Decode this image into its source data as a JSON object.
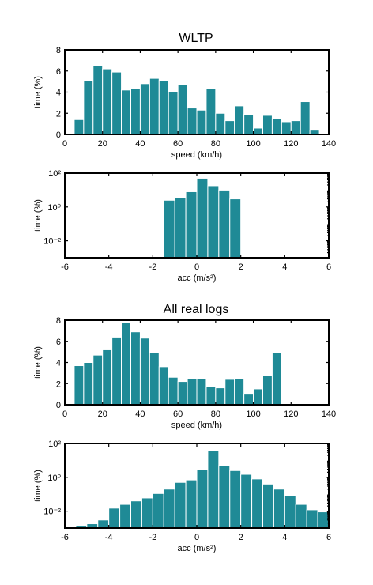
{
  "sections": [
    {
      "title": "WLTP"
    },
    {
      "title": "All real logs"
    }
  ],
  "chart_data": [
    {
      "type": "bar",
      "xlabel": "speed (km/h)",
      "ylabel": "time (%)",
      "xlim": [
        0,
        140
      ],
      "ylim": [
        0,
        8
      ],
      "xticks": [
        "0",
        "20",
        "40",
        "60",
        "80",
        "100",
        "120",
        "140"
      ],
      "yticks": [
        "0",
        "2",
        "4",
        "6",
        "8"
      ],
      "bin_width": 5,
      "bin_starts": [
        5,
        10,
        15,
        20,
        25,
        30,
        35,
        40,
        45,
        50,
        55,
        60,
        65,
        70,
        75,
        80,
        85,
        90,
        95,
        100,
        105,
        110,
        115,
        120,
        125,
        130
      ],
      "values": [
        1.4,
        5.1,
        6.5,
        6.2,
        5.9,
        4.2,
        4.3,
        4.8,
        5.3,
        5.1,
        4.0,
        4.7,
        2.5,
        2.3,
        4.3,
        2.0,
        1.3,
        2.7,
        1.9,
        0.6,
        1.8,
        1.5,
        1.2,
        1.3,
        3.1,
        0.4
      ]
    },
    {
      "type": "bar",
      "xlabel": "acc (m/s²)",
      "ylabel": "time (%)",
      "xlim": [
        -6,
        6
      ],
      "ylim": [
        0.001,
        100
      ],
      "yscale": "log",
      "xticks": [
        "-6",
        "-4",
        "-2",
        "0",
        "2",
        "4",
        "6"
      ],
      "yticks": [
        "10⁻²",
        "10⁰",
        "10²"
      ],
      "bin_width": 0.5,
      "bin_starts": [
        -1.5,
        -1.0,
        -0.5,
        0.0,
        0.5,
        1.0,
        1.5
      ],
      "values": [
        2.5,
        3.5,
        8,
        50,
        18,
        10,
        3
      ]
    },
    {
      "type": "bar",
      "xlabel": "speed (km/h)",
      "ylabel": "time (%)",
      "xlim": [
        0,
        140
      ],
      "ylim": [
        0,
        8
      ],
      "xticks": [
        "0",
        "20",
        "40",
        "60",
        "80",
        "100",
        "120",
        "140"
      ],
      "yticks": [
        "0",
        "2",
        "4",
        "6",
        "8"
      ],
      "bin_width": 5,
      "bin_starts": [
        5,
        10,
        15,
        20,
        25,
        30,
        35,
        40,
        45,
        50,
        55,
        60,
        65,
        70,
        75,
        80,
        85,
        90,
        95,
        100,
        105,
        110
      ],
      "values": [
        3.7,
        4.0,
        4.7,
        5.2,
        6.4,
        7.8,
        6.9,
        6.3,
        4.9,
        3.6,
        2.6,
        2.2,
        2.5,
        2.5,
        1.7,
        1.6,
        2.4,
        2.5,
        1.0,
        1.5,
        2.8,
        4.9
      ]
    },
    {
      "type": "bar",
      "xlabel": "acc (m/s²)",
      "ylabel": "time (%)",
      "xlim": [
        -6,
        6
      ],
      "ylim": [
        0.001,
        100
      ],
      "yscale": "log",
      "xticks": [
        "-6",
        "-4",
        "-2",
        "0",
        "2",
        "4",
        "6"
      ],
      "yticks": [
        "10⁻²",
        "10⁰",
        "10²"
      ],
      "bin_width": 0.5,
      "bin_starts": [
        -5.5,
        -5.0,
        -4.5,
        -4.0,
        -3.5,
        -3.0,
        -2.5,
        -2.0,
        -1.5,
        -1.0,
        -0.5,
        0.0,
        0.5,
        1.0,
        1.5,
        2.0,
        2.5,
        3.0,
        3.5,
        4.0,
        4.5,
        5.0,
        5.5
      ],
      "values": [
        0.0013,
        0.0018,
        0.003,
        0.015,
        0.025,
        0.04,
        0.06,
        0.11,
        0.2,
        0.5,
        0.7,
        3,
        40,
        5,
        2.5,
        1.5,
        0.8,
        0.4,
        0.2,
        0.08,
        0.025,
        0.012,
        0.009
      ]
    }
  ]
}
